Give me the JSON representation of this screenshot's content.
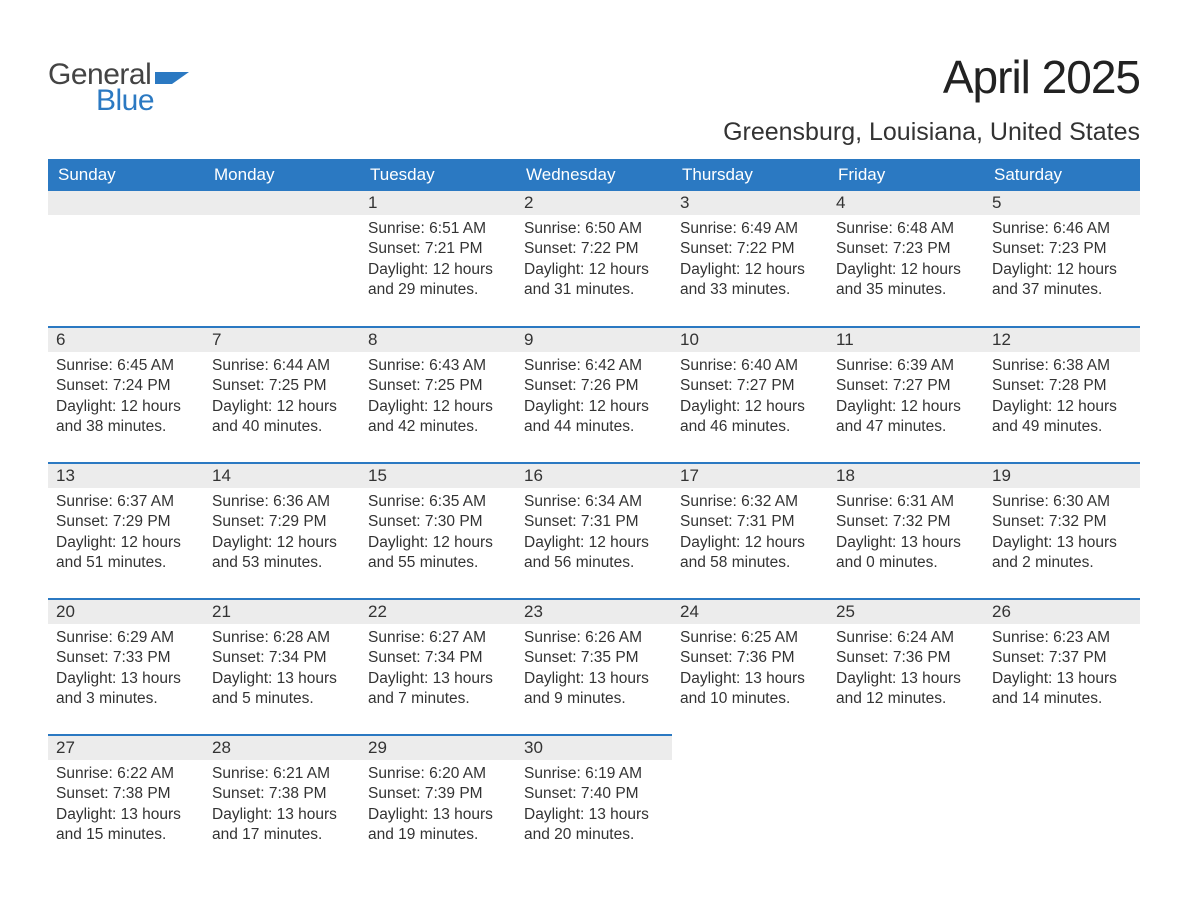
{
  "logo": {
    "top": "General",
    "bottom": "Blue",
    "shape_color": "#2b79c2",
    "text_gray": "#444444"
  },
  "header": {
    "title": "April 2025",
    "subtitle": "Greensburg, Louisiana, United States"
  },
  "calendar": {
    "type": "table",
    "columns": [
      "Sunday",
      "Monday",
      "Tuesday",
      "Wednesday",
      "Thursday",
      "Friday",
      "Saturday"
    ],
    "header_bg": "#2b79c2",
    "header_fg": "#ffffff",
    "daynum_bg": "#ececec",
    "row_divider_color": "#2b79c2",
    "text_color": "#333333",
    "font_size_header": 17,
    "font_size_daynum": 17,
    "font_size_body": 15.5,
    "weeks": [
      [
        {
          "day": "",
          "sunrise": "",
          "sunset": "",
          "daylight": ""
        },
        {
          "day": "",
          "sunrise": "",
          "sunset": "",
          "daylight": ""
        },
        {
          "day": "1",
          "sunrise": "Sunrise: 6:51 AM",
          "sunset": "Sunset: 7:21 PM",
          "daylight": "Daylight: 12 hours and 29 minutes."
        },
        {
          "day": "2",
          "sunrise": "Sunrise: 6:50 AM",
          "sunset": "Sunset: 7:22 PM",
          "daylight": "Daylight: 12 hours and 31 minutes."
        },
        {
          "day": "3",
          "sunrise": "Sunrise: 6:49 AM",
          "sunset": "Sunset: 7:22 PM",
          "daylight": "Daylight: 12 hours and 33 minutes."
        },
        {
          "day": "4",
          "sunrise": "Sunrise: 6:48 AM",
          "sunset": "Sunset: 7:23 PM",
          "daylight": "Daylight: 12 hours and 35 minutes."
        },
        {
          "day": "5",
          "sunrise": "Sunrise: 6:46 AM",
          "sunset": "Sunset: 7:23 PM",
          "daylight": "Daylight: 12 hours and 37 minutes."
        }
      ],
      [
        {
          "day": "6",
          "sunrise": "Sunrise: 6:45 AM",
          "sunset": "Sunset: 7:24 PM",
          "daylight": "Daylight: 12 hours and 38 minutes."
        },
        {
          "day": "7",
          "sunrise": "Sunrise: 6:44 AM",
          "sunset": "Sunset: 7:25 PM",
          "daylight": "Daylight: 12 hours and 40 minutes."
        },
        {
          "day": "8",
          "sunrise": "Sunrise: 6:43 AM",
          "sunset": "Sunset: 7:25 PM",
          "daylight": "Daylight: 12 hours and 42 minutes."
        },
        {
          "day": "9",
          "sunrise": "Sunrise: 6:42 AM",
          "sunset": "Sunset: 7:26 PM",
          "daylight": "Daylight: 12 hours and 44 minutes."
        },
        {
          "day": "10",
          "sunrise": "Sunrise: 6:40 AM",
          "sunset": "Sunset: 7:27 PM",
          "daylight": "Daylight: 12 hours and 46 minutes."
        },
        {
          "day": "11",
          "sunrise": "Sunrise: 6:39 AM",
          "sunset": "Sunset: 7:27 PM",
          "daylight": "Daylight: 12 hours and 47 minutes."
        },
        {
          "day": "12",
          "sunrise": "Sunrise: 6:38 AM",
          "sunset": "Sunset: 7:28 PM",
          "daylight": "Daylight: 12 hours and 49 minutes."
        }
      ],
      [
        {
          "day": "13",
          "sunrise": "Sunrise: 6:37 AM",
          "sunset": "Sunset: 7:29 PM",
          "daylight": "Daylight: 12 hours and 51 minutes."
        },
        {
          "day": "14",
          "sunrise": "Sunrise: 6:36 AM",
          "sunset": "Sunset: 7:29 PM",
          "daylight": "Daylight: 12 hours and 53 minutes."
        },
        {
          "day": "15",
          "sunrise": "Sunrise: 6:35 AM",
          "sunset": "Sunset: 7:30 PM",
          "daylight": "Daylight: 12 hours and 55 minutes."
        },
        {
          "day": "16",
          "sunrise": "Sunrise: 6:34 AM",
          "sunset": "Sunset: 7:31 PM",
          "daylight": "Daylight: 12 hours and 56 minutes."
        },
        {
          "day": "17",
          "sunrise": "Sunrise: 6:32 AM",
          "sunset": "Sunset: 7:31 PM",
          "daylight": "Daylight: 12 hours and 58 minutes."
        },
        {
          "day": "18",
          "sunrise": "Sunrise: 6:31 AM",
          "sunset": "Sunset: 7:32 PM",
          "daylight": "Daylight: 13 hours and 0 minutes."
        },
        {
          "day": "19",
          "sunrise": "Sunrise: 6:30 AM",
          "sunset": "Sunset: 7:32 PM",
          "daylight": "Daylight: 13 hours and 2 minutes."
        }
      ],
      [
        {
          "day": "20",
          "sunrise": "Sunrise: 6:29 AM",
          "sunset": "Sunset: 7:33 PM",
          "daylight": "Daylight: 13 hours and 3 minutes."
        },
        {
          "day": "21",
          "sunrise": "Sunrise: 6:28 AM",
          "sunset": "Sunset: 7:34 PM",
          "daylight": "Daylight: 13 hours and 5 minutes."
        },
        {
          "day": "22",
          "sunrise": "Sunrise: 6:27 AM",
          "sunset": "Sunset: 7:34 PM",
          "daylight": "Daylight: 13 hours and 7 minutes."
        },
        {
          "day": "23",
          "sunrise": "Sunrise: 6:26 AM",
          "sunset": "Sunset: 7:35 PM",
          "daylight": "Daylight: 13 hours and 9 minutes."
        },
        {
          "day": "24",
          "sunrise": "Sunrise: 6:25 AM",
          "sunset": "Sunset: 7:36 PM",
          "daylight": "Daylight: 13 hours and 10 minutes."
        },
        {
          "day": "25",
          "sunrise": "Sunrise: 6:24 AM",
          "sunset": "Sunset: 7:36 PM",
          "daylight": "Daylight: 13 hours and 12 minutes."
        },
        {
          "day": "26",
          "sunrise": "Sunrise: 6:23 AM",
          "sunset": "Sunset: 7:37 PM",
          "daylight": "Daylight: 13 hours and 14 minutes."
        }
      ],
      [
        {
          "day": "27",
          "sunrise": "Sunrise: 6:22 AM",
          "sunset": "Sunset: 7:38 PM",
          "daylight": "Daylight: 13 hours and 15 minutes."
        },
        {
          "day": "28",
          "sunrise": "Sunrise: 6:21 AM",
          "sunset": "Sunset: 7:38 PM",
          "daylight": "Daylight: 13 hours and 17 minutes."
        },
        {
          "day": "29",
          "sunrise": "Sunrise: 6:20 AM",
          "sunset": "Sunset: 7:39 PM",
          "daylight": "Daylight: 13 hours and 19 minutes."
        },
        {
          "day": "30",
          "sunrise": "Sunrise: 6:19 AM",
          "sunset": "Sunset: 7:40 PM",
          "daylight": "Daylight: 13 hours and 20 minutes."
        },
        {
          "day": "",
          "sunrise": "",
          "sunset": "",
          "daylight": ""
        },
        {
          "day": "",
          "sunrise": "",
          "sunset": "",
          "daylight": ""
        },
        {
          "day": "",
          "sunrise": "",
          "sunset": "",
          "daylight": ""
        }
      ]
    ]
  }
}
